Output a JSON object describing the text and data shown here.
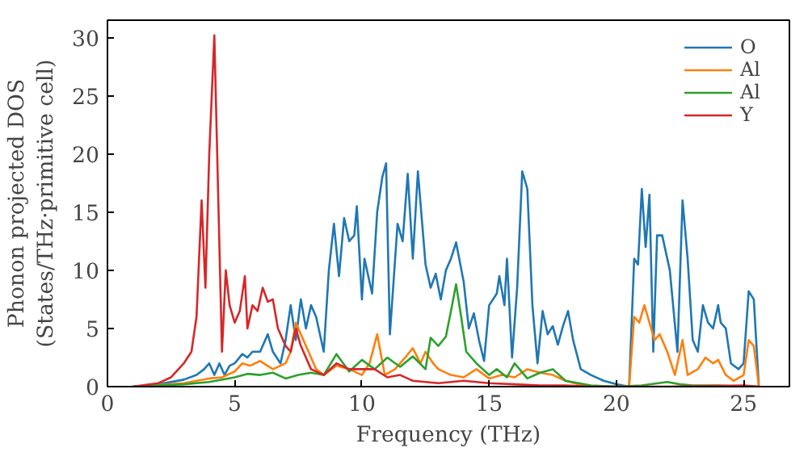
{
  "chart_data": {
    "type": "line",
    "xlabel": "Frequency (THz)",
    "ylabel": "Phonon projected DOS\n(States/THz·primitive cell)",
    "xlim": [
      0,
      26.8
    ],
    "ylim": [
      0,
      31.5
    ],
    "xticks": [
      0,
      5,
      10,
      15,
      20,
      25
    ],
    "yticks": [
      0,
      5,
      10,
      15,
      20,
      25,
      30
    ],
    "grid": false,
    "legend": "top right",
    "series": [
      {
        "name": "O",
        "color": "#1f77b4",
        "x": [
          1,
          2,
          3,
          3.5,
          3.8,
          4.0,
          4.2,
          4.4,
          4.6,
          4.8,
          5,
          5.3,
          5.5,
          5.7,
          6.0,
          6.3,
          6.5,
          6.8,
          7.0,
          7.2,
          7.4,
          7.6,
          7.8,
          8.0,
          8.2,
          8.5,
          8.7,
          8.9,
          9.1,
          9.3,
          9.5,
          9.7,
          9.8,
          10.0,
          10.1,
          10.4,
          10.6,
          10.8,
          10.95,
          11.1,
          11.4,
          11.6,
          11.8,
          12.0,
          12.2,
          12.5,
          12.7,
          12.9,
          13.1,
          13.3,
          13.5,
          13.7,
          14.0,
          14.2,
          14.4,
          14.6,
          14.8,
          15.0,
          15.3,
          15.4,
          15.6,
          15.7,
          15.9,
          16.1,
          16.3,
          16.5,
          16.7,
          16.9,
          17.1,
          17.3,
          17.5,
          17.7,
          17.9,
          18.1,
          18.3,
          18.6,
          19,
          19.5,
          20,
          20.5,
          20.7,
          20.85,
          21.0,
          21.15,
          21.3,
          21.45,
          21.6,
          21.8,
          22.1,
          22.4,
          22.6,
          22.8,
          23.0,
          23.2,
          23.4,
          23.6,
          23.8,
          24.0,
          24.1,
          24.3,
          24.5,
          24.8,
          25.0,
          25.2,
          25.4,
          25.6
        ],
        "values": [
          0,
          0.2,
          0.6,
          1,
          1.5,
          2,
          1,
          2,
          1,
          1.8,
          2,
          2.8,
          2.5,
          3,
          3,
          4.5,
          3,
          2,
          4,
          7,
          4,
          7.5,
          5,
          7,
          6,
          3,
          10,
          14,
          9.5,
          14.5,
          12.5,
          13,
          15.5,
          7.5,
          11,
          8,
          15,
          18,
          19.2,
          4.5,
          14,
          12.5,
          18.3,
          11,
          18.5,
          10.5,
          8.5,
          9.7,
          7.5,
          10,
          11,
          12.4,
          9,
          5,
          6.3,
          4,
          2.2,
          7,
          8,
          9.5,
          7,
          11,
          2.5,
          8.5,
          18.5,
          17,
          7,
          2,
          6.5,
          4.5,
          5.2,
          3.6,
          5.2,
          6.5,
          4,
          1.5,
          1,
          0.5,
          0.2,
          0,
          11,
          10.5,
          17,
          12,
          16.5,
          3,
          13,
          13,
          10,
          3,
          16,
          11,
          4,
          3,
          7,
          5.5,
          5,
          7,
          5.5,
          5,
          2,
          1.5,
          2,
          8.2,
          7.5,
          0
        ]
      },
      {
        "name": "Al",
        "color": "#ff7f0e",
        "x": [
          1,
          3,
          4,
          4.5,
          5,
          5.3,
          5.6,
          6.0,
          6.5,
          7,
          7.2,
          7.4,
          7.6,
          7.9,
          8.2,
          8.5,
          9,
          9.5,
          10,
          10.3,
          10.6,
          10.9,
          11.3,
          11.7,
          12,
          12.3,
          12.5,
          12.8,
          13,
          13.5,
          14,
          14.5,
          15,
          15.5,
          16,
          16.5,
          17,
          17.5,
          18,
          18.5,
          19,
          20.5,
          20.7,
          20.9,
          21.1,
          21.3,
          21.5,
          21.7,
          22,
          22.3,
          22.6,
          22.8,
          23.2,
          23.5,
          23.8,
          24,
          24.3,
          24.6,
          25.0,
          25.2,
          25.4,
          25.6
        ],
        "values": [
          0,
          0.3,
          0.7,
          0.8,
          1.3,
          2,
          1.8,
          2.2,
          1.5,
          2,
          3,
          5.5,
          4.5,
          3,
          1.5,
          1,
          1.8,
          1.5,
          1,
          2,
          4.5,
          1,
          1.5,
          2.5,
          3.3,
          2,
          3,
          2,
          1.5,
          1,
          0.8,
          1.5,
          0.7,
          1,
          0.8,
          1.5,
          1.2,
          1,
          0.5,
          0.2,
          0,
          0,
          6,
          5.5,
          7,
          5.5,
          4,
          4.5,
          3,
          1,
          4,
          1,
          1.5,
          2.5,
          2,
          2.3,
          1,
          0.5,
          1,
          4,
          3.5,
          0
        ]
      },
      {
        "name": "Al",
        "color": "#2ca02c",
        "x": [
          1,
          3,
          4,
          5,
          5.5,
          6,
          6.5,
          7,
          7.5,
          8,
          8.5,
          9,
          9.5,
          10,
          10.5,
          11,
          11.5,
          12,
          12.5,
          12.7,
          13,
          13.3,
          13.5,
          13.7,
          13.9,
          14.1,
          14.5,
          15,
          15.3,
          15.7,
          16,
          16.5,
          17,
          17.5,
          18,
          19,
          20,
          21,
          22,
          22.5,
          23,
          24,
          25,
          25.6
        ],
        "values": [
          0,
          0.2,
          0.4,
          0.8,
          1.1,
          1,
          1.2,
          0.7,
          1,
          1.2,
          1,
          2.8,
          1.3,
          2.3,
          1.5,
          2.5,
          1.7,
          2.6,
          1.5,
          4.2,
          3.5,
          4.3,
          6.5,
          8.8,
          6,
          3,
          2,
          1,
          1.5,
          0.8,
          2,
          0.7,
          1.2,
          1.5,
          0.5,
          0.1,
          0,
          0.1,
          0.4,
          0.2,
          0.1,
          0.1,
          null,
          0
        ]
      },
      {
        "name": "Y",
        "color": "#d62728",
        "x": [
          1.0,
          2,
          2.5,
          3,
          3.3,
          3.5,
          3.7,
          3.85,
          4.0,
          4.2,
          4.4,
          4.5,
          4.65,
          4.8,
          5.0,
          5.2,
          5.4,
          5.5,
          5.7,
          5.9,
          6.1,
          6.3,
          6.5,
          6.7,
          7.0,
          7.2,
          7.4,
          7.6,
          8,
          8.5,
          9,
          9.5,
          10,
          10.5,
          11,
          11.5,
          12,
          13,
          14,
          15,
          16,
          17,
          18,
          19,
          20,
          21,
          22,
          25,
          25.6
        ],
        "values": [
          0,
          0.3,
          0.8,
          2,
          3,
          6,
          16,
          8.5,
          20,
          30.2,
          12,
          3,
          10,
          7,
          5.5,
          6.5,
          9.5,
          5,
          7,
          6.5,
          8.5,
          7.3,
          7.5,
          5,
          3.5,
          3,
          5,
          3.5,
          1.5,
          1,
          2,
          1.5,
          1.5,
          1.5,
          0.8,
          1,
          0.5,
          0.3,
          0.5,
          0.3,
          0.2,
          0.1,
          0.1,
          0,
          0,
          0,
          0,
          0.1,
          0
        ]
      }
    ]
  }
}
